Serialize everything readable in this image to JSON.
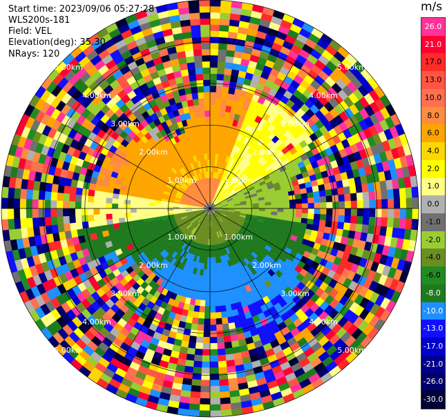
{
  "header": {
    "start_time": "Start time: 2023/09/06 05:27:28",
    "instrument": "WLS200s-181",
    "field": "Field: VEL",
    "elevation": "Elevation(deg): 35.30",
    "nrays": "NRays: 120"
  },
  "colorbar": {
    "unit": "m/s",
    "labels": [
      "26.0",
      "21.0",
      "17.0",
      "13.0",
      "10.0",
      "8.0",
      "6.0",
      "4.0",
      "2.0",
      "1.0",
      "0.0",
      "-1.0",
      "-2.0",
      "-4.0",
      "-6.0",
      "-8.0",
      "-10.0",
      "-13.0",
      "-17.0",
      "-21.0",
      "-26.0",
      "-30.0"
    ],
    "colors": [
      "#ff3399",
      "#ff0033",
      "#ff2a2a",
      "#ff5544",
      "#ff7050",
      "#ff8c40",
      "#ffa500",
      "#ffd700",
      "#ffff00",
      "#ffff88",
      "#b0b0b0",
      "#707070",
      "#9acd32",
      "#6b8e23",
      "#228b22",
      "#1f7a1f",
      "#1e90ff",
      "#1010ff",
      "#0000cd",
      "#00008b",
      "#000066",
      "#000033"
    ]
  },
  "chart_data": {
    "type": "heatmap",
    "projection": "polar-ppi",
    "field": "VEL",
    "n_rays": 120,
    "range_rings_km": [
      1.0,
      2.0,
      3.0,
      4.0,
      5.0
    ],
    "ring_labels": [
      "1.00km",
      "2.00km",
      "3.00km",
      "4.00km",
      "5.00km"
    ],
    "max_range_km": 5.0,
    "grid": true,
    "vmin": -30.0,
    "vmax": 26.0
  }
}
